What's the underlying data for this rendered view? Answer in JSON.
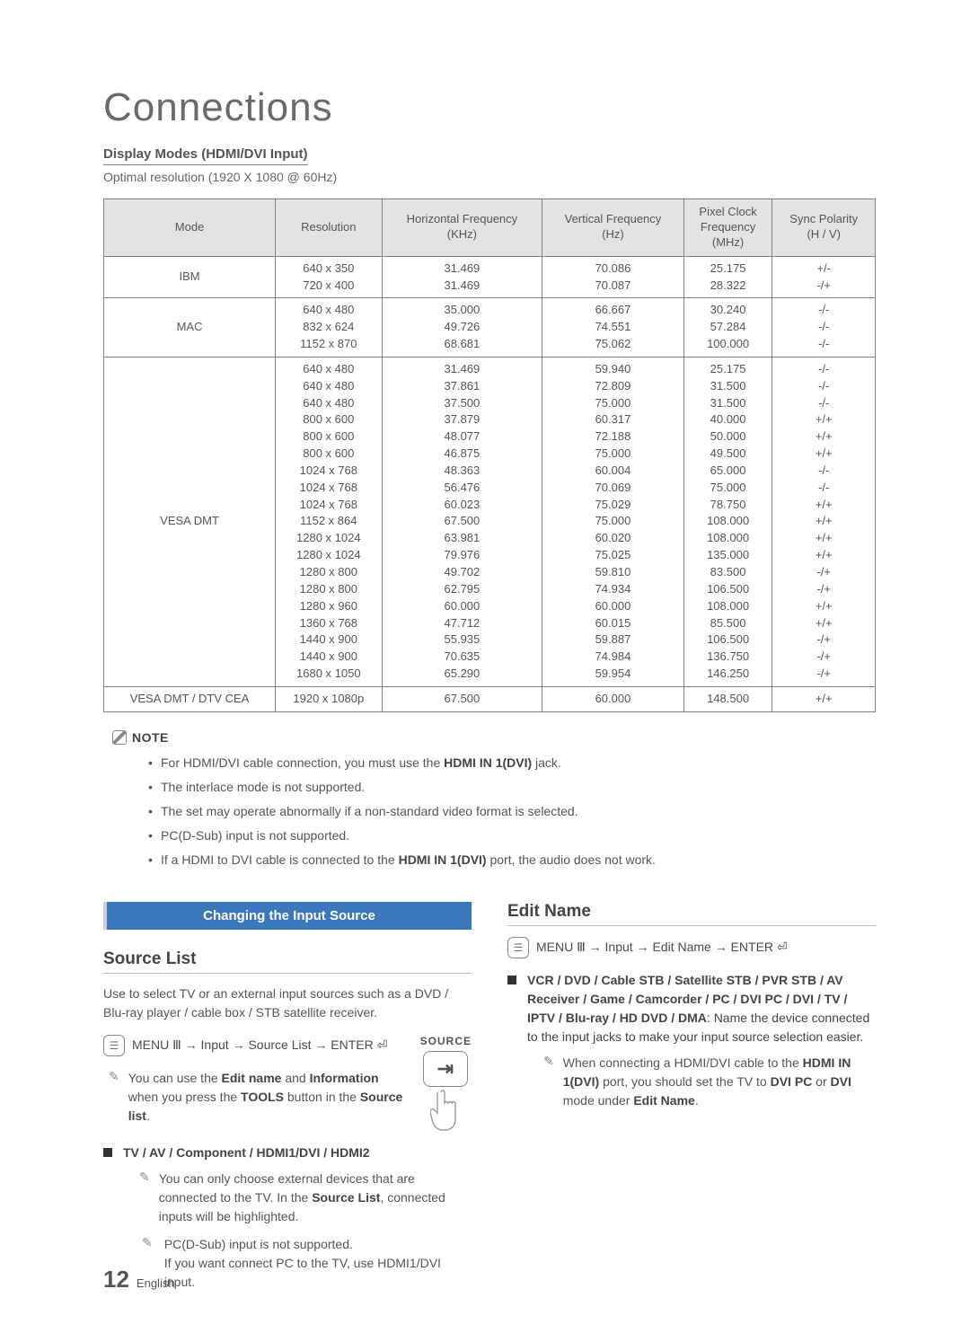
{
  "page_title": "Connections",
  "subtitle": "Display Modes (HDMI/DVI Input)",
  "optimal": "Optimal resolution (1920 X 1080 @ 60Hz)",
  "table": {
    "headers": [
      "Mode",
      "Resolution",
      "Horizontal Frequency\n(KHz)",
      "Vertical Frequency\n(Hz)",
      "Pixel Clock\nFrequency\n(MHz)",
      "Sync Polarity\n(H / V)"
    ],
    "rows": [
      {
        "mode": "IBM",
        "res": "640 x 350\n720 x 400",
        "hf": "31.469\n31.469",
        "vf": "70.086\n70.087",
        "pc": "25.175\n28.322",
        "sp": "+/-\n-/+"
      },
      {
        "mode": "MAC",
        "res": "640 x 480\n832 x 624\n1152 x 870",
        "hf": "35.000\n49.726\n68.681",
        "vf": "66.667\n74.551\n75.062",
        "pc": "30.240\n57.284\n100.000",
        "sp": "-/-\n-/-\n-/-"
      },
      {
        "mode": "VESA DMT",
        "res": "640 x 480\n640 x 480\n640 x 480\n800 x 600\n800 x 600\n800 x 600\n1024 x 768\n1024 x 768\n1024 x 768\n1152 x 864\n1280 x 1024\n1280 x 1024\n1280 x 800\n1280 x 800\n1280 x 960\n1360 x 768\n1440 x 900\n1440 x 900\n1680 x 1050",
        "hf": "31.469\n37.861\n37.500\n37.879\n48.077\n46.875\n48.363\n56.476\n60.023\n67.500\n63.981\n79.976\n49.702\n62.795\n60.000\n47.712\n55.935\n70.635\n65.290",
        "vf": "59.940\n72.809\n75.000\n60.317\n72.188\n75.000\n60.004\n70.069\n75.029\n75.000\n60.020\n75.025\n59.810\n74.934\n60.000\n60.015\n59.887\n74.984\n59.954",
        "pc": "25.175\n31.500\n31.500\n40.000\n50.000\n49.500\n65.000\n75.000\n78.750\n108.000\n108.000\n135.000\n83.500\n106.500\n108.000\n85.500\n106.500\n136.750\n146.250",
        "sp": "-/-\n-/-\n-/-\n+/+\n+/+\n+/+\n-/-\n-/-\n+/+\n+/+\n+/+\n+/+\n-/+\n-/+\n+/+\n+/+\n-/+\n-/+\n-/+"
      },
      {
        "mode": "VESA DMT / DTV CEA",
        "res": "1920 x 1080p",
        "hf": "67.500",
        "vf": "60.000",
        "pc": "148.500",
        "sp": "+/+"
      }
    ]
  },
  "note_label": "NOTE",
  "notes": [
    "For HDMI/DVI cable connection, you must use the HDMI IN 1(DVI) jack.",
    "The interlace mode is not supported.",
    "The set may operate abnormally if a non-standard video format is selected.",
    "PC(D-Sub) input is not supported.",
    "If a HDMI to DVI cable is connected to the HDMI IN 1(DVI) port, the audio does not work."
  ],
  "left": {
    "bar": "Changing the Input Source",
    "h_source_list": "Source List",
    "para1": "Use to select TV or an external input sources such as a DVD / Blu-ray player / cable box / STB satellite receiver.",
    "menu_path": "MENU Ⅲ → Input → Source List → ENTER",
    "source_label": "SOURCE",
    "tip1_pre": "You can use the ",
    "tip1_b1": "Edit name",
    "tip1_mid": " and ",
    "tip1_b2": "Information",
    "tip1_post": " when you press the ",
    "tip1_b3": "TOOLS",
    "tip1_post2": " button in the ",
    "tip1_b4": "Source list",
    "tip1_end": ".",
    "blk1": "TV / AV / Component / HDMI1/DVI / HDMI2",
    "blk1_note_pre": "You can only choose external devices that are connected to the TV. In the ",
    "blk1_note_b": "Source List",
    "blk1_note_post": ", connected inputs will be highlighted.",
    "blk1_note2": "PC(D-Sub) input is not supported.\nIf you want connect PC to the TV, use HDMI1/DVI input."
  },
  "right": {
    "h_edit": "Edit Name",
    "menu_path": "MENU Ⅲ → Input → Edit Name → ENTER",
    "blk_b": "VCR / DVD / Cable STB / Satellite STB / PVR STB / AV Receiver / Game / Camcorder / PC / DVI PC / DVI / TV / IPTV / Blu-ray / HD DVD / DMA",
    "blk_text": ": Name the device connected to the input jacks to make your input source selection easier.",
    "tip_pre": "When connecting a HDMI/DVI cable to the ",
    "tip_b1": "HDMI IN 1(DVI)",
    "tip_mid": " port, you should set the TV to ",
    "tip_b2": "DVI PC",
    "tip_or": " or ",
    "tip_b3": "DVI",
    "tip_post": " mode under ",
    "tip_b4": "Edit Name",
    "tip_end": "."
  },
  "footer": {
    "page": "12",
    "lang": "English"
  }
}
